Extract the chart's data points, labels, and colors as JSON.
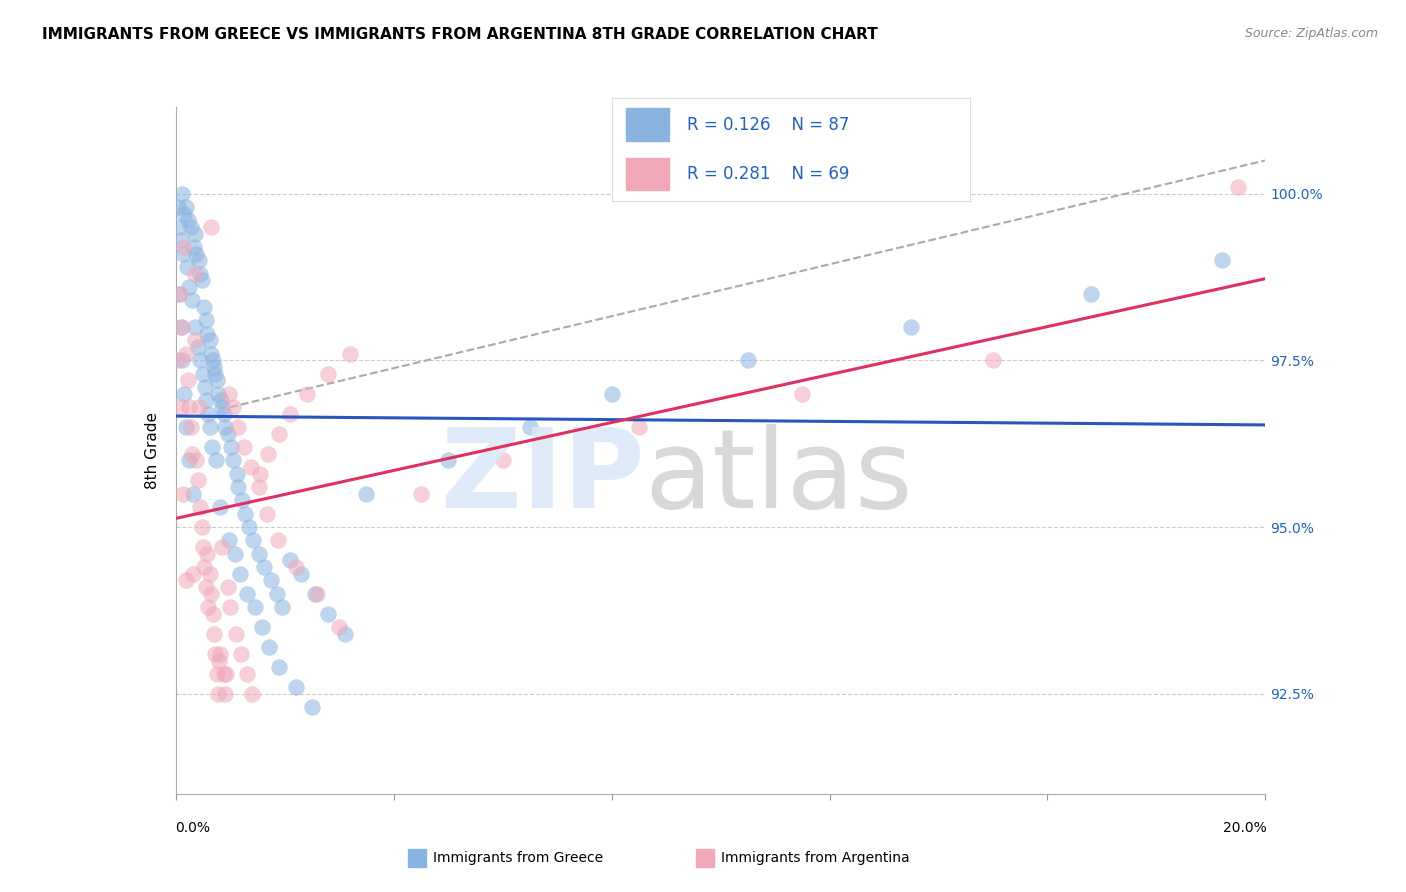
{
  "title": "IMMIGRANTS FROM GREECE VS IMMIGRANTS FROM ARGENTINA 8TH GRADE CORRELATION CHART",
  "source": "Source: ZipAtlas.com",
  "ylabel": "8th Grade",
  "yticks": [
    92.5,
    95.0,
    97.5,
    100.0
  ],
  "ytick_labels": [
    "92.5%",
    "95.0%",
    "97.5%",
    "100.0%"
  ],
  "xlim": [
    0.0,
    20.0
  ],
  "ylim": [
    91.0,
    101.3
  ],
  "color_greece": "#8ab4e0",
  "color_argentina": "#f0a8b8",
  "color_line_greece": "#2855c0",
  "color_line_argentina": "#e03060",
  "color_dashed": "#aaaaaa",
  "color_legend_text": "#2060c8",
  "color_tick_labels": "#2060c8",
  "watermark_color_ZIP": "#dce8f8",
  "watermark_color_atlas": "#c8c8c8",
  "greece_x": [
    0.05,
    0.08,
    0.1,
    0.12,
    0.14,
    0.16,
    0.18,
    0.2,
    0.22,
    0.25,
    0.28,
    0.3,
    0.33,
    0.35,
    0.36,
    0.38,
    0.4,
    0.42,
    0.44,
    0.45,
    0.48,
    0.5,
    0.52,
    0.53,
    0.55,
    0.56,
    0.58,
    0.6,
    0.62,
    0.63,
    0.65,
    0.66,
    0.68,
    0.7,
    0.72,
    0.73,
    0.75,
    0.78,
    0.82,
    0.83,
    0.85,
    0.88,
    0.9,
    0.95,
    0.98,
    1.02,
    1.05,
    1.08,
    1.12,
    1.15,
    1.18,
    1.22,
    1.28,
    1.3,
    1.35,
    1.42,
    1.45,
    1.52,
    1.58,
    1.62,
    1.72,
    1.75,
    1.85,
    1.9,
    1.95,
    2.1,
    2.2,
    2.3,
    2.5,
    2.55,
    2.8,
    3.1,
    3.5,
    5.0,
    6.5,
    8.0,
    10.5,
    13.5,
    16.8,
    19.2,
    0.06,
    0.09,
    0.11,
    0.15,
    0.19,
    0.24,
    0.32
  ],
  "greece_y": [
    99.8,
    99.5,
    99.3,
    100.0,
    99.1,
    99.7,
    99.8,
    98.9,
    99.6,
    98.6,
    99.5,
    98.4,
    99.2,
    99.4,
    98.0,
    99.1,
    97.7,
    99.0,
    98.8,
    97.5,
    98.7,
    97.3,
    98.3,
    97.1,
    98.1,
    96.9,
    97.9,
    96.7,
    97.8,
    96.5,
    97.6,
    96.2,
    97.5,
    97.4,
    97.3,
    96.0,
    97.2,
    97.0,
    95.3,
    96.9,
    96.8,
    96.7,
    96.5,
    96.4,
    94.8,
    96.2,
    96.0,
    94.6,
    95.8,
    95.6,
    94.3,
    95.4,
    95.2,
    94.0,
    95.0,
    94.8,
    93.8,
    94.6,
    93.5,
    94.4,
    93.2,
    94.2,
    94.0,
    92.9,
    93.8,
    94.5,
    92.6,
    94.3,
    92.3,
    94.0,
    93.7,
    93.4,
    95.5,
    96.0,
    96.5,
    97.0,
    97.5,
    98.0,
    98.5,
    99.0,
    98.5,
    98.0,
    97.5,
    97.0,
    96.5,
    96.0,
    95.5
  ],
  "argentina_x": [
    0.05,
    0.08,
    0.09,
    0.12,
    0.14,
    0.18,
    0.19,
    0.22,
    0.25,
    0.28,
    0.3,
    0.32,
    0.35,
    0.38,
    0.4,
    0.42,
    0.45,
    0.48,
    0.5,
    0.52,
    0.55,
    0.58,
    0.6,
    0.62,
    0.65,
    0.68,
    0.7,
    0.72,
    0.75,
    0.78,
    0.8,
    0.82,
    0.85,
    0.88,
    0.9,
    0.92,
    0.95,
    0.98,
    1.0,
    1.05,
    1.1,
    1.15,
    1.2,
    1.25,
    1.3,
    1.38,
    1.4,
    1.52,
    1.55,
    1.68,
    1.7,
    1.88,
    1.9,
    2.1,
    2.2,
    2.4,
    2.6,
    2.8,
    3.0,
    3.2,
    4.5,
    6.0,
    8.5,
    11.5,
    15.0,
    19.5,
    0.15,
    0.35,
    0.65
  ],
  "argentina_y": [
    97.5,
    98.5,
    96.8,
    98.0,
    95.5,
    97.6,
    94.2,
    97.2,
    96.8,
    96.5,
    96.1,
    94.3,
    97.8,
    96.0,
    95.7,
    96.8,
    95.3,
    95.0,
    94.7,
    94.4,
    94.1,
    94.6,
    93.8,
    94.3,
    94.0,
    93.7,
    93.4,
    93.1,
    92.8,
    92.5,
    93.0,
    93.1,
    94.7,
    92.8,
    92.5,
    92.8,
    94.1,
    97.0,
    93.8,
    96.8,
    93.4,
    96.5,
    93.1,
    96.2,
    92.8,
    95.9,
    92.5,
    95.6,
    95.8,
    95.2,
    96.1,
    94.8,
    96.4,
    96.7,
    94.4,
    97.0,
    94.0,
    97.3,
    93.5,
    97.6,
    95.5,
    96.0,
    96.5,
    97.0,
    97.5,
    100.1,
    99.2,
    98.8,
    99.5
  ]
}
